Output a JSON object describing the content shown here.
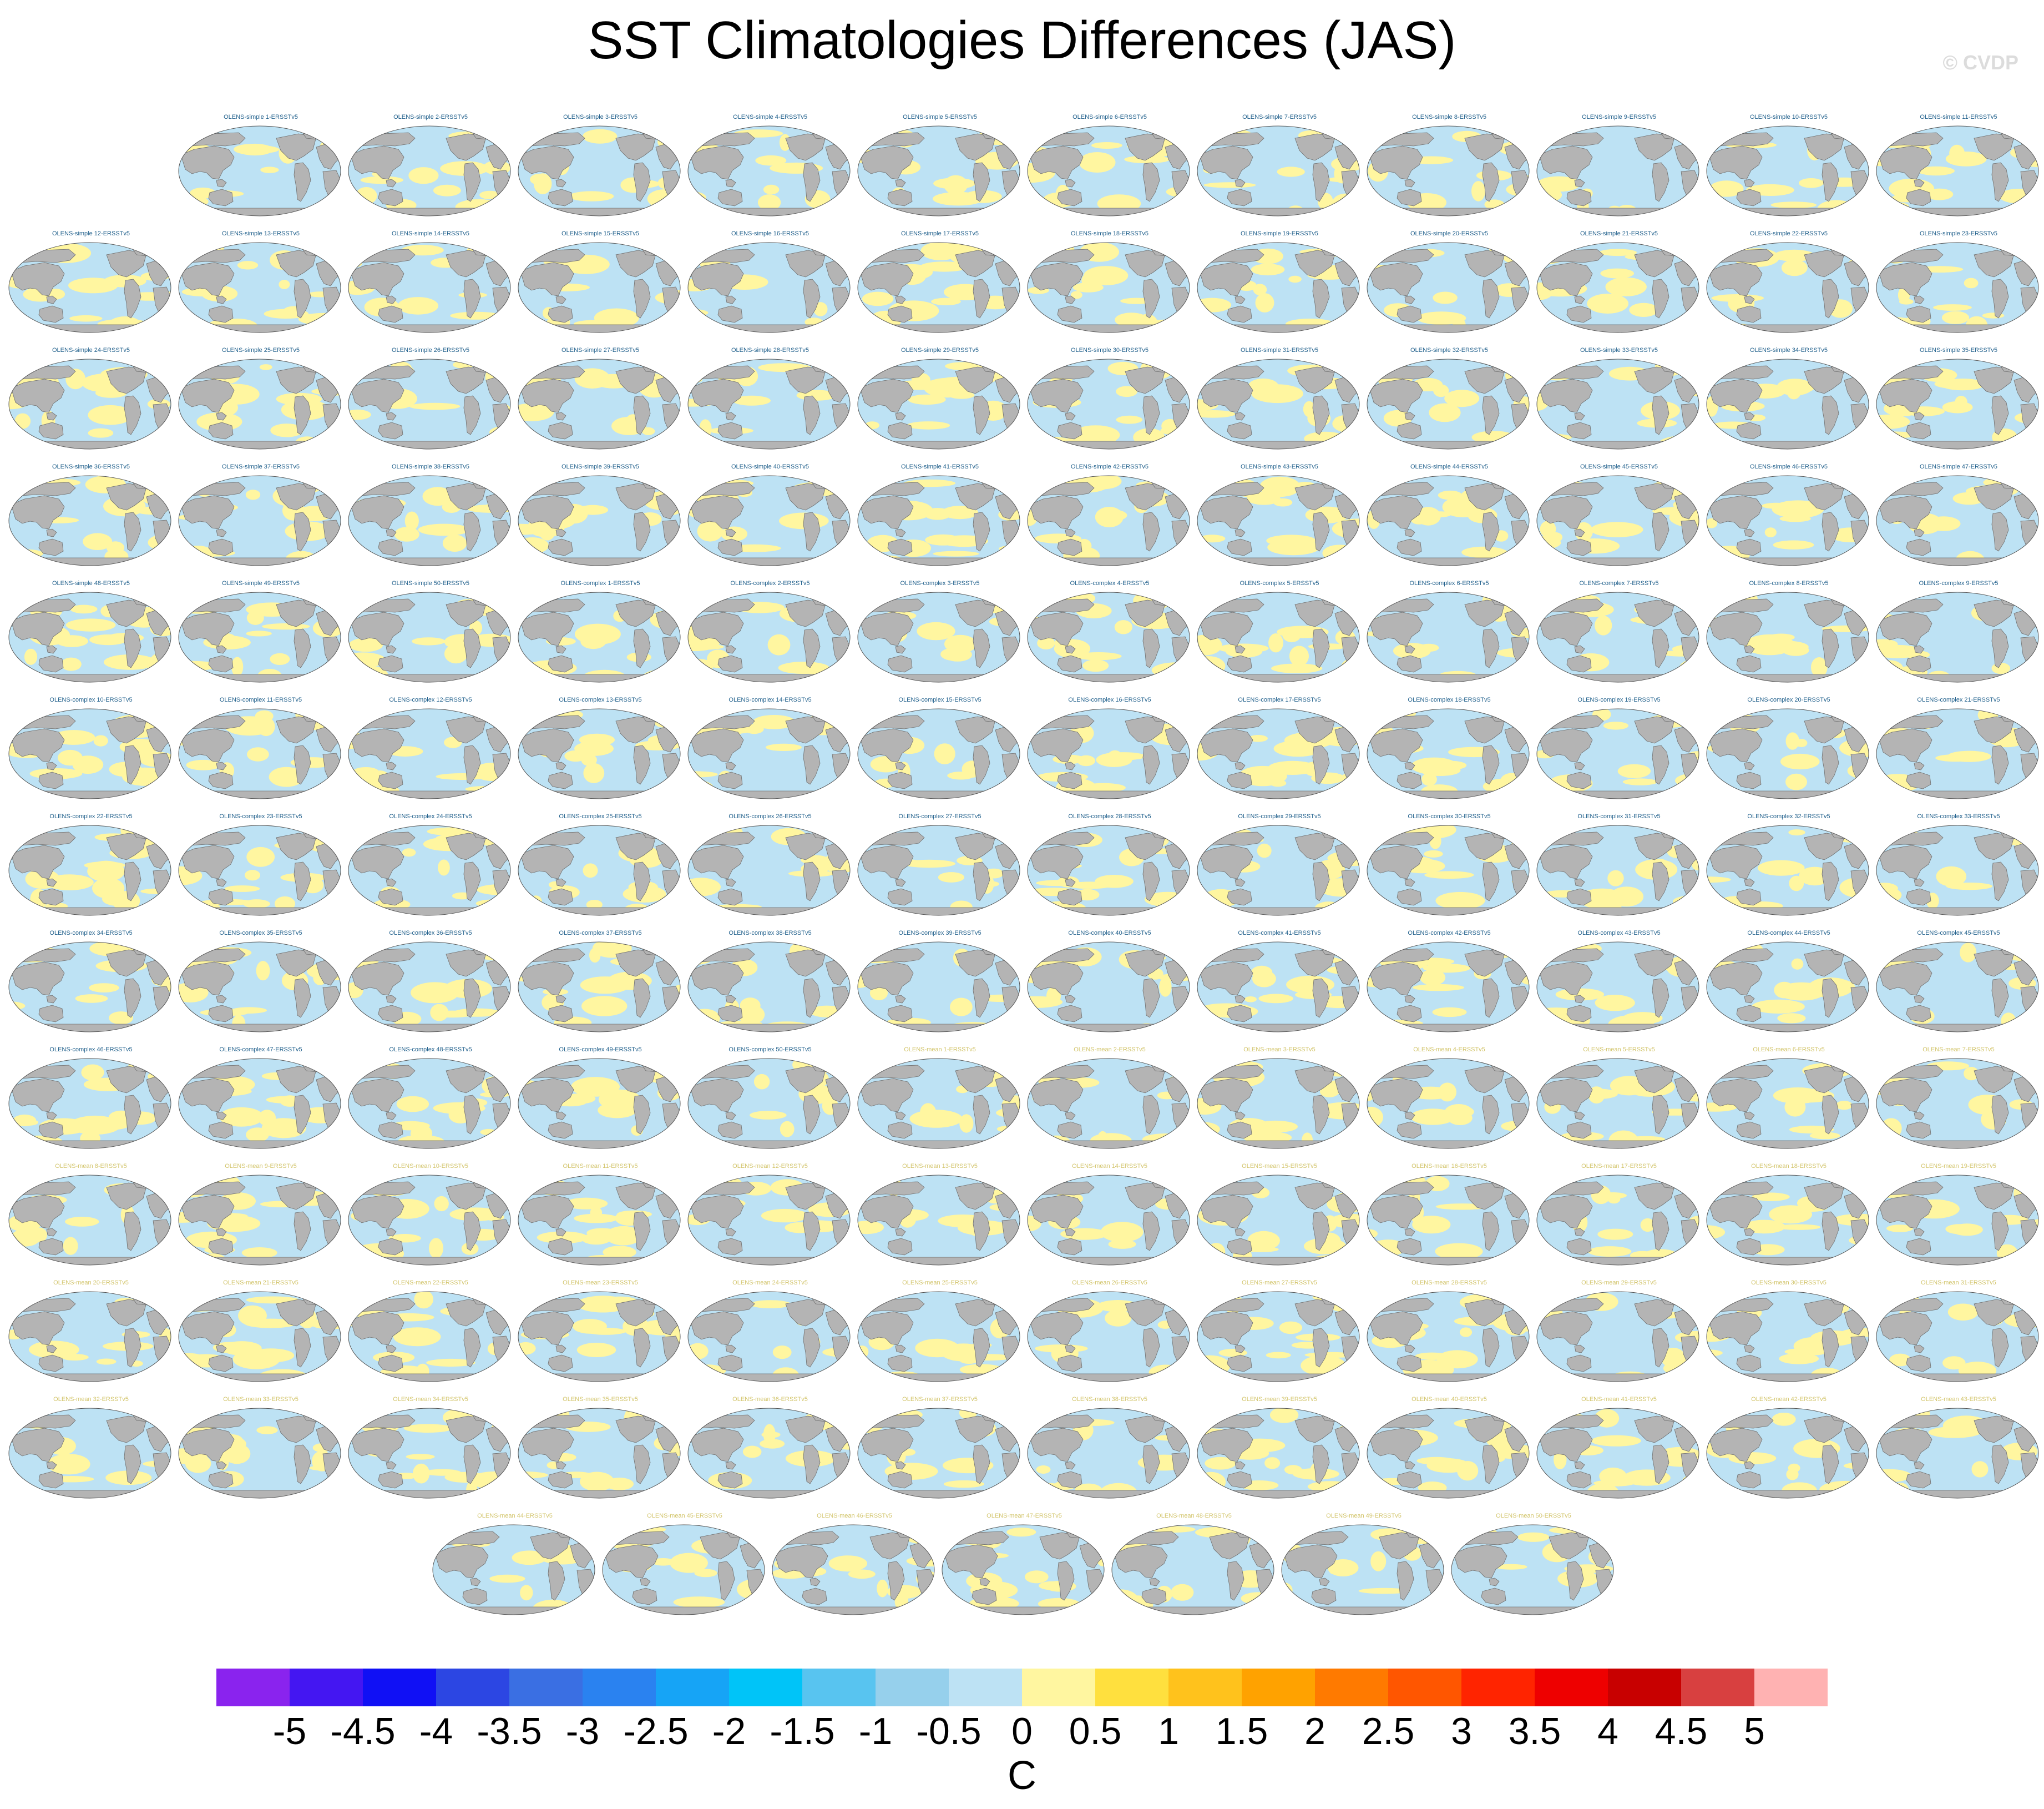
{
  "title": "SST Climatologies Differences (JAS)",
  "watermark": "© CVDP",
  "colorbar": {
    "units": "C",
    "labels": [
      "-5",
      "-4.5",
      "-4",
      "-3.5",
      "-3",
      "-2.5",
      "-2",
      "-1.5",
      "-1",
      "-0.5",
      "0",
      "0.5",
      "1",
      "1.5",
      "2",
      "2.5",
      "3",
      "3.5",
      "4",
      "4.5",
      "5"
    ],
    "colors": [
      "#8a23ee",
      "#4416f2",
      "#1010f5",
      "#2c46e3",
      "#3a6fe3",
      "#2a82f0",
      "#16a4f6",
      "#00c4f8",
      "#58c4f0",
      "#96d0ec",
      "#bde2f4",
      "#fff6a0",
      "#ffe03e",
      "#ffc21c",
      "#ffa200",
      "#ff7a00",
      "#ff5600",
      "#ff2400",
      "#ee0000",
      "#c80000",
      "#d84040",
      "#ffb2b2"
    ]
  },
  "map_colors": {
    "ocean": "#bde2f4",
    "anomaly": "#fff6a0",
    "land": "#b4b4b4",
    "title_dark": "#1f5f8b",
    "title_light": "#d2c46a"
  },
  "panels": [
    "OLENS-simple 1-ERSSTv5",
    "OLENS-simple 2-ERSSTv5",
    "OLENS-simple 3-ERSSTv5",
    "OLENS-simple 4-ERSSTv5",
    "OLENS-simple 5-ERSSTv5",
    "OLENS-simple 6-ERSSTv5",
    "OLENS-simple 7-ERSSTv5",
    "OLENS-simple 8-ERSSTv5",
    "OLENS-simple 9-ERSSTv5",
    "OLENS-simple 10-ERSSTv5",
    "OLENS-simple 11-ERSSTv5",
    "OLENS-simple 12-ERSSTv5",
    "OLENS-simple 13-ERSSTv5",
    "OLENS-simple 14-ERSSTv5",
    "OLENS-simple 15-ERSSTv5",
    "OLENS-simple 16-ERSSTv5",
    "OLENS-simple 17-ERSSTv5",
    "OLENS-simple 18-ERSSTv5",
    "OLENS-simple 19-ERSSTv5",
    "OLENS-simple 20-ERSSTv5",
    "OLENS-simple 21-ERSSTv5",
    "OLENS-simple 22-ERSSTv5",
    "OLENS-simple 23-ERSSTv5",
    "OLENS-simple 24-ERSSTv5",
    "OLENS-simple 25-ERSSTv5",
    "OLENS-simple 26-ERSSTv5",
    "OLENS-simple 27-ERSSTv5",
    "OLENS-simple 28-ERSSTv5",
    "OLENS-simple 29-ERSSTv5",
    "OLENS-simple 30-ERSSTv5",
    "OLENS-simple 31-ERSSTv5",
    "OLENS-simple 32-ERSSTv5",
    "OLENS-simple 33-ERSSTv5",
    "OLENS-simple 34-ERSSTv5",
    "OLENS-simple 35-ERSSTv5",
    "OLENS-simple 36-ERSSTv5",
    "OLENS-simple 37-ERSSTv5",
    "OLENS-simple 38-ERSSTv5",
    "OLENS-simple 39-ERSSTv5",
    "OLENS-simple 40-ERSSTv5",
    "OLENS-simple 41-ERSSTv5",
    "OLENS-simple 42-ERSSTv5",
    "OLENS-simple 43-ERSSTv5",
    "OLENS-simple 44-ERSSTv5",
    "OLENS-simple 45-ERSSTv5",
    "OLENS-simple 46-ERSSTv5",
    "OLENS-simple 47-ERSSTv5",
    "OLENS-simple 48-ERSSTv5",
    "OLENS-simple 49-ERSSTv5",
    "OLENS-simple 50-ERSSTv5",
    "OLENS-complex 1-ERSSTv5",
    "OLENS-complex 2-ERSSTv5",
    "OLENS-complex 3-ERSSTv5",
    "OLENS-complex 4-ERSSTv5",
    "OLENS-complex 5-ERSSTv5",
    "OLENS-complex 6-ERSSTv5",
    "OLENS-complex 7-ERSSTv5",
    "OLENS-complex 8-ERSSTv5",
    "OLENS-complex 9-ERSSTv5",
    "OLENS-complex 10-ERSSTv5",
    "OLENS-complex 11-ERSSTv5",
    "OLENS-complex 12-ERSSTv5",
    "OLENS-complex 13-ERSSTv5",
    "OLENS-complex 14-ERSSTv5",
    "OLENS-complex 15-ERSSTv5",
    "OLENS-complex 16-ERSSTv5",
    "OLENS-complex 17-ERSSTv5",
    "OLENS-complex 18-ERSSTv5",
    "OLENS-complex 19-ERSSTv5",
    "OLENS-complex 20-ERSSTv5",
    "OLENS-complex 21-ERSSTv5",
    "OLENS-complex 22-ERSSTv5",
    "OLENS-complex 23-ERSSTv5",
    "OLENS-complex 24-ERSSTv5",
    "OLENS-complex 25-ERSSTv5",
    "OLENS-complex 26-ERSSTv5",
    "OLENS-complex 27-ERSSTv5",
    "OLENS-complex 28-ERSSTv5",
    "OLENS-complex 29-ERSSTv5",
    "OLENS-complex 30-ERSSTv5",
    "OLENS-complex 31-ERSSTv5",
    "OLENS-complex 32-ERSSTv5",
    "OLENS-complex 33-ERSSTv5",
    "OLENS-complex 34-ERSSTv5",
    "OLENS-complex 35-ERSSTv5",
    "OLENS-complex 36-ERSSTv5",
    "OLENS-complex 37-ERSSTv5",
    "OLENS-complex 38-ERSSTv5",
    "OLENS-complex 39-ERSSTv5",
    "OLENS-complex 40-ERSSTv5",
    "OLENS-complex 41-ERSSTv5",
    "OLENS-complex 42-ERSSTv5",
    "OLENS-complex 43-ERSSTv5",
    "OLENS-complex 44-ERSSTv5",
    "OLENS-complex 45-ERSSTv5",
    "OLENS-complex 46-ERSSTv5",
    "OLENS-complex 47-ERSSTv5",
    "OLENS-complex 48-ERSSTv5",
    "OLENS-complex 49-ERSSTv5",
    "OLENS-complex 50-ERSSTv5",
    "OLENS-mean 1-ERSSTv5",
    "OLENS-mean 2-ERSSTv5",
    "OLENS-mean 3-ERSSTv5",
    "OLENS-mean 4-ERSSTv5",
    "OLENS-mean 5-ERSSTv5",
    "OLENS-mean 6-ERSSTv5",
    "OLENS-mean 7-ERSSTv5",
    "OLENS-mean 8-ERSSTv5",
    "OLENS-mean 9-ERSSTv5",
    "OLENS-mean 10-ERSSTv5",
    "OLENS-mean 11-ERSSTv5",
    "OLENS-mean 12-ERSSTv5",
    "OLENS-mean 13-ERSSTv5",
    "OLENS-mean 14-ERSSTv5",
    "OLENS-mean 15-ERSSTv5",
    "OLENS-mean 16-ERSSTv5",
    "OLENS-mean 17-ERSSTv5",
    "OLENS-mean 18-ERSSTv5",
    "OLENS-mean 19-ERSSTv5",
    "OLENS-mean 20-ERSSTv5",
    "OLENS-mean 21-ERSSTv5",
    "OLENS-mean 22-ERSSTv5",
    "OLENS-mean 23-ERSSTv5",
    "OLENS-mean 24-ERSSTv5",
    "OLENS-mean 25-ERSSTv5",
    "OLENS-mean 26-ERSSTv5",
    "OLENS-mean 27-ERSSTv5",
    "OLENS-mean 28-ERSSTv5",
    "OLENS-mean 29-ERSSTv5",
    "OLENS-mean 30-ERSSTv5",
    "OLENS-mean 31-ERSSTv5",
    "OLENS-mean 32-ERSSTv5",
    "OLENS-mean 33-ERSSTv5",
    "OLENS-mean 34-ERSSTv5",
    "OLENS-mean 35-ERSSTv5",
    "OLENS-mean 36-ERSSTv5",
    "OLENS-mean 37-ERSSTv5",
    "OLENS-mean 38-ERSSTv5",
    "OLENS-mean 39-ERSSTv5",
    "OLENS-mean 40-ERSSTv5",
    "OLENS-mean 41-ERSSTv5",
    "OLENS-mean 42-ERSSTv5",
    "OLENS-mean 43-ERSSTv5",
    "OLENS-mean 44-ERSSTv5",
    "OLENS-mean 45-ERSSTv5",
    "OLENS-mean 46-ERSSTv5",
    "OLENS-mean 47-ERSSTv5",
    "OLENS-mean 48-ERSSTv5",
    "OLENS-mean 49-ERSSTv5",
    "OLENS-mean 50-ERSSTv5"
  ]
}
